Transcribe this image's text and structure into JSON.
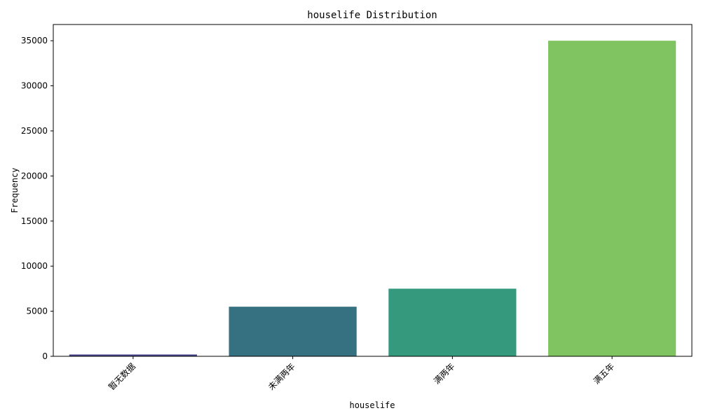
{
  "chart_data": {
    "type": "bar",
    "title": "houselife Distribution",
    "xlabel": "houselife",
    "ylabel": "Frequency",
    "categories": [
      "暂无数据",
      "未满两年",
      "满两年",
      "满五年"
    ],
    "values": [
      200,
      5500,
      7500,
      35000
    ],
    "colors": [
      "#46458a",
      "#367182",
      "#35997e",
      "#80c461"
    ],
    "ylim": [
      0,
      36800
    ],
    "yticks": [
      0,
      5000,
      10000,
      15000,
      20000,
      25000,
      30000,
      35000
    ],
    "ytick_labels": [
      "0",
      "5000",
      "10000",
      "15000",
      "20000",
      "25000",
      "30000",
      "35000"
    ],
    "grid": false,
    "legend": "none"
  }
}
